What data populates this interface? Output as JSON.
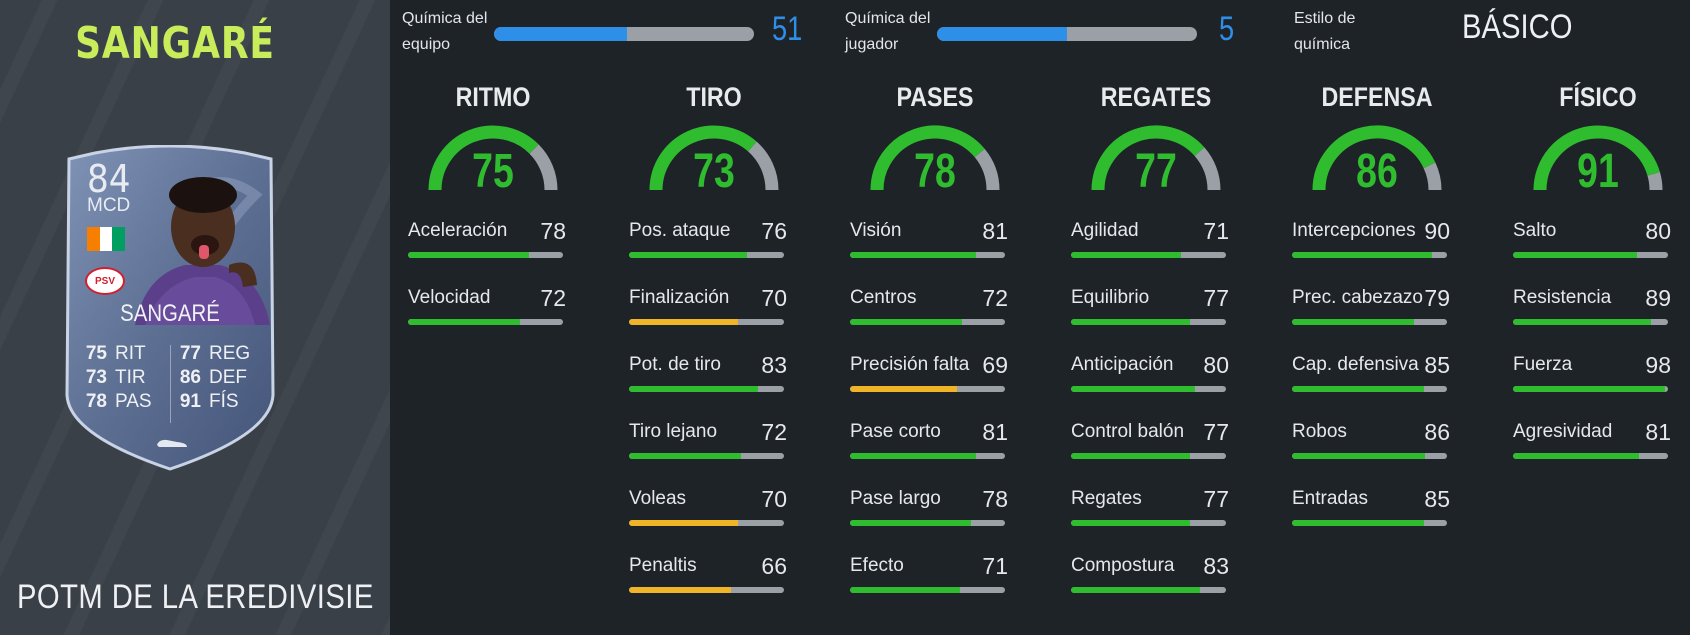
{
  "player": {
    "name": "SANGARÉ",
    "card": {
      "rating": "84",
      "position": "MCD",
      "name": "SANGARÉ",
      "club_badge": "PSV",
      "stats": [
        {
          "value": "75",
          "label": "RIT"
        },
        {
          "value": "77",
          "label": "REG"
        },
        {
          "value": "73",
          "label": "TIR"
        },
        {
          "value": "86",
          "label": "DEF"
        },
        {
          "value": "78",
          "label": "PAS"
        },
        {
          "value": "91",
          "label": "FÍS"
        }
      ]
    },
    "promo": "POTM DE LA EREDIVISIE"
  },
  "chemistry": {
    "team": {
      "label": "Química del equipo",
      "value": "51",
      "max": 100
    },
    "player": {
      "label": "Química del jugador",
      "value": "5",
      "max": 10
    },
    "style": {
      "label": "Estilo de química",
      "value": "BÁSICO"
    }
  },
  "colors": {
    "accent_name": "#c8ec5a",
    "chem_blue": "#2e8fe8",
    "green": "#2fbd2f",
    "yellow": "#f0b429",
    "track": "#9aa0a6"
  },
  "categories": [
    {
      "title": "RITMO",
      "value": 75,
      "stats": [
        {
          "label": "Aceleración",
          "value": 78
        },
        {
          "label": "Velocidad",
          "value": 72
        }
      ]
    },
    {
      "title": "TIRO",
      "value": 73,
      "stats": [
        {
          "label": "Pos. ataque",
          "value": 76
        },
        {
          "label": "Finalización",
          "value": 70
        },
        {
          "label": "Pot. de tiro",
          "value": 83
        },
        {
          "label": "Tiro lejano",
          "value": 72
        },
        {
          "label": "Voleas",
          "value": 70
        },
        {
          "label": "Penaltis",
          "value": 66
        }
      ]
    },
    {
      "title": "PASES",
      "value": 78,
      "stats": [
        {
          "label": "Visión",
          "value": 81
        },
        {
          "label": "Centros",
          "value": 72
        },
        {
          "label": "Precisión falta",
          "value": 69
        },
        {
          "label": "Pase corto",
          "value": 81
        },
        {
          "label": "Pase largo",
          "value": 78
        },
        {
          "label": "Efecto",
          "value": 71
        }
      ]
    },
    {
      "title": "REGATES",
      "value": 77,
      "stats": [
        {
          "label": "Agilidad",
          "value": 71
        },
        {
          "label": "Equilibrio",
          "value": 77
        },
        {
          "label": "Anticipación",
          "value": 80
        },
        {
          "label": "Control balón",
          "value": 77
        },
        {
          "label": "Regates",
          "value": 77
        },
        {
          "label": "Compostura",
          "value": 83
        }
      ]
    },
    {
      "title": "DEFENSA",
      "value": 86,
      "stats": [
        {
          "label": "Intercepciones",
          "value": 90
        },
        {
          "label": "Prec. cabezazo",
          "value": 79
        },
        {
          "label": "Cap. defensiva",
          "value": 85
        },
        {
          "label": "Robos",
          "value": 86
        },
        {
          "label": "Entradas",
          "value": 85
        }
      ]
    },
    {
      "title": "FÍSICO",
      "value": 91,
      "stats": [
        {
          "label": "Salto",
          "value": 80
        },
        {
          "label": "Resistencia",
          "value": 89
        },
        {
          "label": "Fuerza",
          "value": 98
        },
        {
          "label": "Agresividad",
          "value": 81
        }
      ]
    }
  ]
}
